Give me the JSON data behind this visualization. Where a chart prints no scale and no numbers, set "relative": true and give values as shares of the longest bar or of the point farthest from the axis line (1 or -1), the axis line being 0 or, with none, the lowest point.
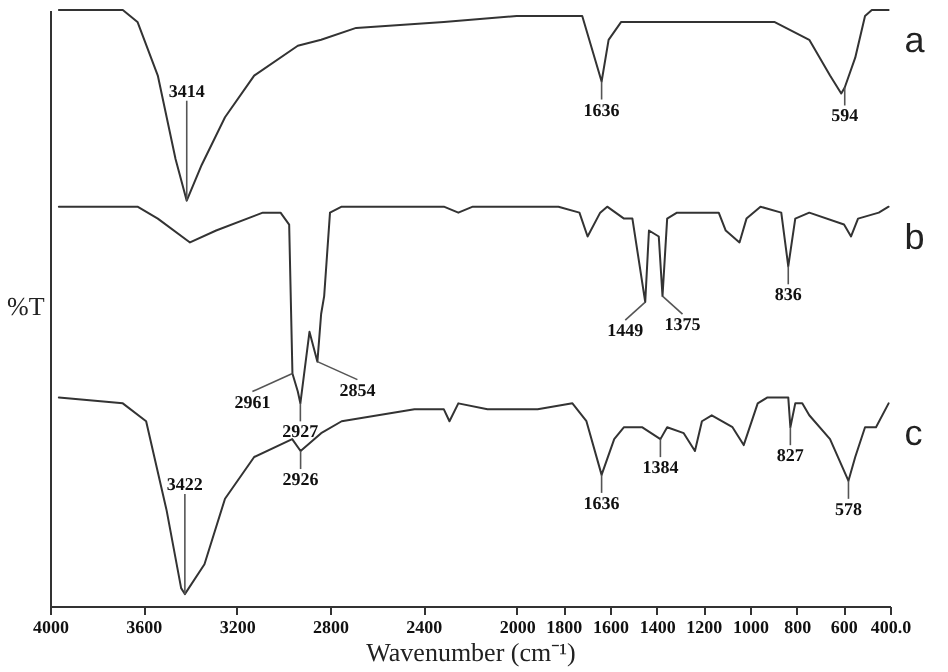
{
  "chart_data": {
    "type": "line",
    "relative": true,
    "xlabel": "Wavenumber (cm⁻¹)",
    "ylabel": "%T",
    "xlim": [
      4000,
      400
    ],
    "xticks": [
      4000,
      3600,
      3200,
      2800,
      2400,
      2000,
      1800,
      1600,
      1400,
      1200,
      1000,
      800,
      600,
      {
        "value": 400,
        "label": "400.0"
      }
    ],
    "grid": false,
    "marker": "none",
    "line_style": "solid",
    "series": [
      {
        "name": "a",
        "color": "#333333",
        "x": [
          3962,
          3688,
          3625,
          3538,
          3462,
          3414,
          3350,
          3250,
          3125,
          2938,
          2838,
          2688,
          2312,
          2000,
          1719,
          1636,
          1606,
          1552,
          1373,
          1045,
          896,
          746,
          657,
          609,
          594,
          549,
          507,
          478,
          406
        ],
        "values": [
          1.0,
          1.0,
          0.98,
          0.89,
          0.75,
          0.68,
          0.74,
          0.82,
          0.89,
          0.94,
          0.95,
          0.97,
          0.98,
          0.99,
          0.99,
          0.88,
          0.95,
          0.98,
          0.98,
          0.98,
          0.98,
          0.95,
          0.89,
          0.86,
          0.87,
          0.92,
          0.99,
          1.0,
          1.0
        ]
      },
      {
        "name": "b",
        "color": "#333333",
        "x": [
          3962,
          3625,
          3538,
          3400,
          3288,
          3088,
          3012,
          2975,
          2961,
          2938,
          2927,
          2888,
          2854,
          2838,
          2825,
          2800,
          2750,
          2312,
          2250,
          2188,
          1821,
          1731,
          1696,
          1642,
          1612,
          1540,
          1504,
          1449,
          1433,
          1391,
          1375,
          1355,
          1313,
          1134,
          1104,
          1045,
          1015,
          955,
          866,
          836,
          806,
          746,
          597,
          567,
          537,
          448,
          406
        ],
        "values": [
          0.67,
          0.67,
          0.65,
          0.61,
          0.63,
          0.66,
          0.66,
          0.64,
          0.39,
          0.36,
          0.34,
          0.46,
          0.41,
          0.49,
          0.52,
          0.66,
          0.67,
          0.67,
          0.66,
          0.67,
          0.67,
          0.66,
          0.62,
          0.66,
          0.67,
          0.65,
          0.65,
          0.51,
          0.63,
          0.62,
          0.52,
          0.65,
          0.66,
          0.66,
          0.63,
          0.61,
          0.65,
          0.67,
          0.66,
          0.57,
          0.65,
          0.66,
          0.64,
          0.62,
          0.65,
          0.66,
          0.67
        ]
      },
      {
        "name": "c",
        "color": "#333333",
        "x": [
          3962,
          3688,
          3588,
          3500,
          3438,
          3422,
          3338,
          3250,
          3125,
          2962,
          2926,
          2838,
          2750,
          2438,
          2312,
          2288,
          2250,
          2125,
          1910,
          1761,
          1701,
          1636,
          1582,
          1540,
          1463,
          1384,
          1355,
          1284,
          1236,
          1206,
          1164,
          1075,
          1027,
          967,
          925,
          836,
          827,
          806,
          776,
          746,
          657,
          578,
          549,
          507,
          460,
          406
        ],
        "values": [
          0.35,
          0.34,
          0.31,
          0.16,
          0.03,
          0.02,
          0.07,
          0.18,
          0.25,
          0.28,
          0.26,
          0.29,
          0.31,
          0.33,
          0.33,
          0.31,
          0.34,
          0.33,
          0.33,
          0.34,
          0.31,
          0.22,
          0.28,
          0.3,
          0.3,
          0.28,
          0.3,
          0.29,
          0.26,
          0.31,
          0.32,
          0.3,
          0.27,
          0.34,
          0.35,
          0.35,
          0.3,
          0.34,
          0.34,
          0.32,
          0.28,
          0.21,
          0.25,
          0.3,
          0.3,
          0.34
        ]
      }
    ],
    "annotations": [
      {
        "text": "3414",
        "x": 3414,
        "y": 0.68
      },
      {
        "text": "1636",
        "x": 1636,
        "y": 0.88
      },
      {
        "text": "594",
        "x": 594,
        "y": 0.87
      },
      {
        "text": "2961",
        "x": 2961,
        "y": 0.39
      },
      {
        "text": "2927",
        "x": 2927,
        "y": 0.34
      },
      {
        "text": "2854",
        "x": 2854,
        "y": 0.41
      },
      {
        "text": "1449",
        "x": 1449,
        "y": 0.51
      },
      {
        "text": "1375",
        "x": 1375,
        "y": 0.52
      },
      {
        "text": "836",
        "x": 836,
        "y": 0.57
      },
      {
        "text": "3422",
        "x": 3422,
        "y": 0.02
      },
      {
        "text": "2926",
        "x": 2926,
        "y": 0.26
      },
      {
        "text": "1636",
        "x": 1636,
        "y": 0.22
      },
      {
        "text": "1384",
        "x": 1384,
        "y": 0.28
      },
      {
        "text": "827",
        "x": 827,
        "y": 0.3
      },
      {
        "text": "578",
        "x": 578,
        "y": 0.21
      }
    ]
  }
}
